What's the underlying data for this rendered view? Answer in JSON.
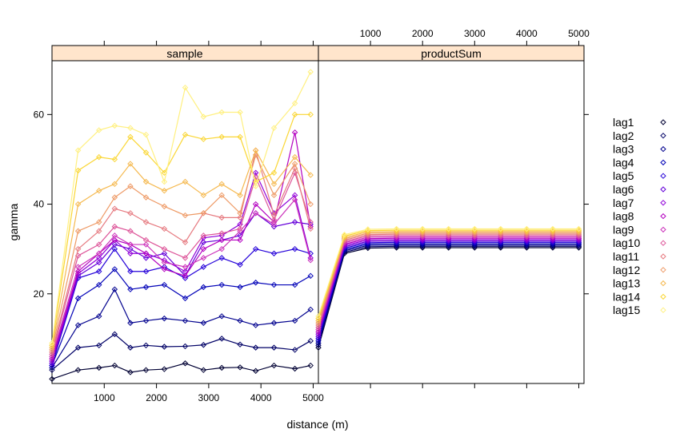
{
  "chart_data": {
    "type": "line",
    "ylabel": "gamma",
    "xlabel": "distance (m)",
    "xlim": [
      0,
      5100
    ],
    "ylim": [
      0,
      72
    ],
    "x_ticks": [
      1000,
      2000,
      3000,
      4000,
      5000
    ],
    "y_ticks": [
      20,
      40,
      60
    ],
    "panels": [
      {
        "name": "sample",
        "strip_label": "sample"
      },
      {
        "name": "productSum",
        "strip_label": "productSum"
      }
    ],
    "legend_position": "right",
    "sample_x": [
      0,
      500,
      900,
      1200,
      1500,
      1800,
      2150,
      2550,
      2900,
      3250,
      3600,
      3900,
      4250,
      4650,
      4950
    ],
    "model_x": [
      0,
      500,
      950,
      1500,
      2000,
      2500,
      3000,
      3500,
      4000,
      4500,
      5000
    ],
    "series": [
      {
        "name": "lag1",
        "color": "#000033",
        "sample_values": [
          1,
          3,
          3.5,
          4,
          2.5,
          3,
          3.2,
          4.5,
          3,
          3.5,
          3.6,
          2.8,
          4,
          3.3,
          4
        ],
        "model_values": [
          8,
          29,
          30.2,
          30.3,
          30.3,
          30.3,
          30.3,
          30.3,
          30.3,
          30.3,
          30.3
        ]
      },
      {
        "name": "lag2",
        "color": "#000066",
        "sample_values": [
          3,
          8,
          8.5,
          11,
          8,
          8.5,
          8.2,
          8.3,
          8.6,
          10,
          8.7,
          8,
          8,
          7.5,
          9.5
        ],
        "model_values": [
          8.5,
          29.3,
          30.5,
          30.6,
          30.6,
          30.6,
          30.6,
          30.6,
          30.6,
          30.6,
          30.6
        ]
      },
      {
        "name": "lag3",
        "color": "#00008E",
        "sample_values": [
          3.5,
          13,
          15,
          21,
          13.5,
          14,
          14.5,
          14,
          13.5,
          15,
          14,
          13,
          13.5,
          14,
          16.5
        ],
        "model_values": [
          9,
          29.6,
          30.8,
          30.9,
          30.9,
          30.9,
          30.9,
          30.9,
          30.9,
          30.9,
          30.9
        ]
      },
      {
        "name": "lag4",
        "color": "#0000B7",
        "sample_values": [
          4,
          19,
          22,
          25.5,
          21,
          21.5,
          22,
          19,
          21.5,
          22,
          21.5,
          22.5,
          22,
          22,
          24
        ],
        "model_values": [
          9.5,
          29.9,
          31.1,
          31.2,
          31.2,
          31.2,
          31.2,
          31.2,
          31.2,
          31.2,
          31.2
        ]
      },
      {
        "name": "lag5",
        "color": "#2400D9",
        "sample_values": [
          4,
          23.5,
          25,
          30,
          25,
          25,
          26,
          23.5,
          26,
          28,
          26.5,
          30,
          29,
          30,
          29
        ],
        "model_values": [
          10,
          30.2,
          31.4,
          31.5,
          31.5,
          31.5,
          31.5,
          31.5,
          31.5,
          31.5,
          31.5
        ]
      },
      {
        "name": "lag6",
        "color": "#6500D9",
        "sample_values": [
          4.5,
          24,
          27,
          31,
          30,
          28,
          29,
          24,
          31.5,
          32,
          33,
          38,
          35,
          36,
          35.5
        ],
        "model_values": [
          10.5,
          30.5,
          31.7,
          31.8,
          31.8,
          31.8,
          31.8,
          31.8,
          31.8,
          31.8,
          31.8
        ]
      },
      {
        "name": "lag7",
        "color": "#9000D9",
        "sample_values": [
          5,
          24.5,
          28,
          32,
          29,
          29,
          27.5,
          25,
          32.5,
          33,
          35.5,
          47,
          38,
          42,
          28
        ],
        "model_values": [
          11,
          30.8,
          32,
          32.1,
          32.1,
          32.1,
          32.1,
          32.1,
          32.1,
          32.1,
          32.1
        ]
      },
      {
        "name": "lag8",
        "color": "#B300C0",
        "sample_values": [
          5.5,
          25,
          29,
          32,
          31,
          29,
          25.5,
          24,
          30,
          32,
          32,
          40,
          36,
          56,
          35
        ],
        "model_values": [
          11.5,
          31.1,
          32.3,
          32.4,
          32.4,
          32.4,
          32.4,
          32.4,
          32.4,
          32.4,
          32.4
        ]
      },
      {
        "name": "lag9",
        "color": "#CC33BB",
        "sample_values": [
          6,
          26,
          29,
          33,
          31,
          31,
          27,
          26,
          28,
          30,
          34,
          38,
          35.5,
          41,
          27.5
        ],
        "model_values": [
          12,
          31.4,
          32.6,
          32.7,
          32.7,
          32.7,
          32.7,
          32.7,
          32.7,
          32.7,
          32.7
        ]
      },
      {
        "name": "lag10",
        "color": "#DD5599",
        "sample_values": [
          6.5,
          28.5,
          31,
          35,
          34,
          32,
          30,
          28,
          33,
          33.5,
          34.5,
          46,
          36.5,
          47,
          36
        ],
        "model_values": [
          12.5,
          31.7,
          32.9,
          33,
          33,
          33,
          33,
          33,
          33,
          33,
          33
        ]
      },
      {
        "name": "lag11",
        "color": "#E67A80",
        "sample_values": [
          7,
          30,
          34,
          39,
          38,
          36,
          34.5,
          31.5,
          38,
          37,
          37,
          52,
          37.5,
          48,
          34.5
        ],
        "model_values": [
          13,
          32,
          33.2,
          33.3,
          33.3,
          33.3,
          33.3,
          33.3,
          33.3,
          33.3,
          33.3
        ]
      },
      {
        "name": "lag12",
        "color": "#EE9A66",
        "sample_values": [
          7.5,
          34,
          36,
          41.5,
          44,
          41.5,
          39.5,
          37.5,
          38,
          42,
          38,
          51,
          42,
          49,
          40
        ],
        "model_values": [
          13.5,
          32.3,
          33.5,
          33.6,
          33.6,
          33.6,
          33.6,
          33.6,
          33.6,
          33.6,
          33.6
        ]
      },
      {
        "name": "lag13",
        "color": "#F5B84D",
        "sample_values": [
          8,
          40,
          43,
          44.5,
          49,
          45,
          43,
          45,
          42,
          44.5,
          42,
          52,
          44.5,
          50.5,
          46.5
        ],
        "model_values": [
          14,
          32.6,
          33.8,
          33.9,
          33.9,
          33.9,
          33.9,
          33.9,
          33.9,
          33.9,
          33.9
        ]
      },
      {
        "name": "lag14",
        "color": "#FAD633",
        "sample_values": [
          8.5,
          47.5,
          50.5,
          50,
          55,
          51.5,
          47,
          55.5,
          54.5,
          55,
          55,
          45,
          47,
          60,
          60
        ],
        "model_values": [
          14.5,
          32.9,
          34.1,
          34.2,
          34.2,
          34.2,
          34.2,
          34.2,
          34.2,
          34.2,
          34.2
        ]
      },
      {
        "name": "lag15",
        "color": "#FFF080",
        "sample_values": [
          9,
          52,
          56.5,
          57.5,
          57,
          55.5,
          45,
          66,
          59.5,
          60.5,
          60.5,
          44,
          57,
          62.5,
          69.5
        ],
        "model_values": [
          15,
          33.2,
          34.4,
          34.5,
          34.5,
          34.5,
          34.5,
          34.5,
          34.5,
          34.5,
          34.5
        ]
      }
    ]
  }
}
